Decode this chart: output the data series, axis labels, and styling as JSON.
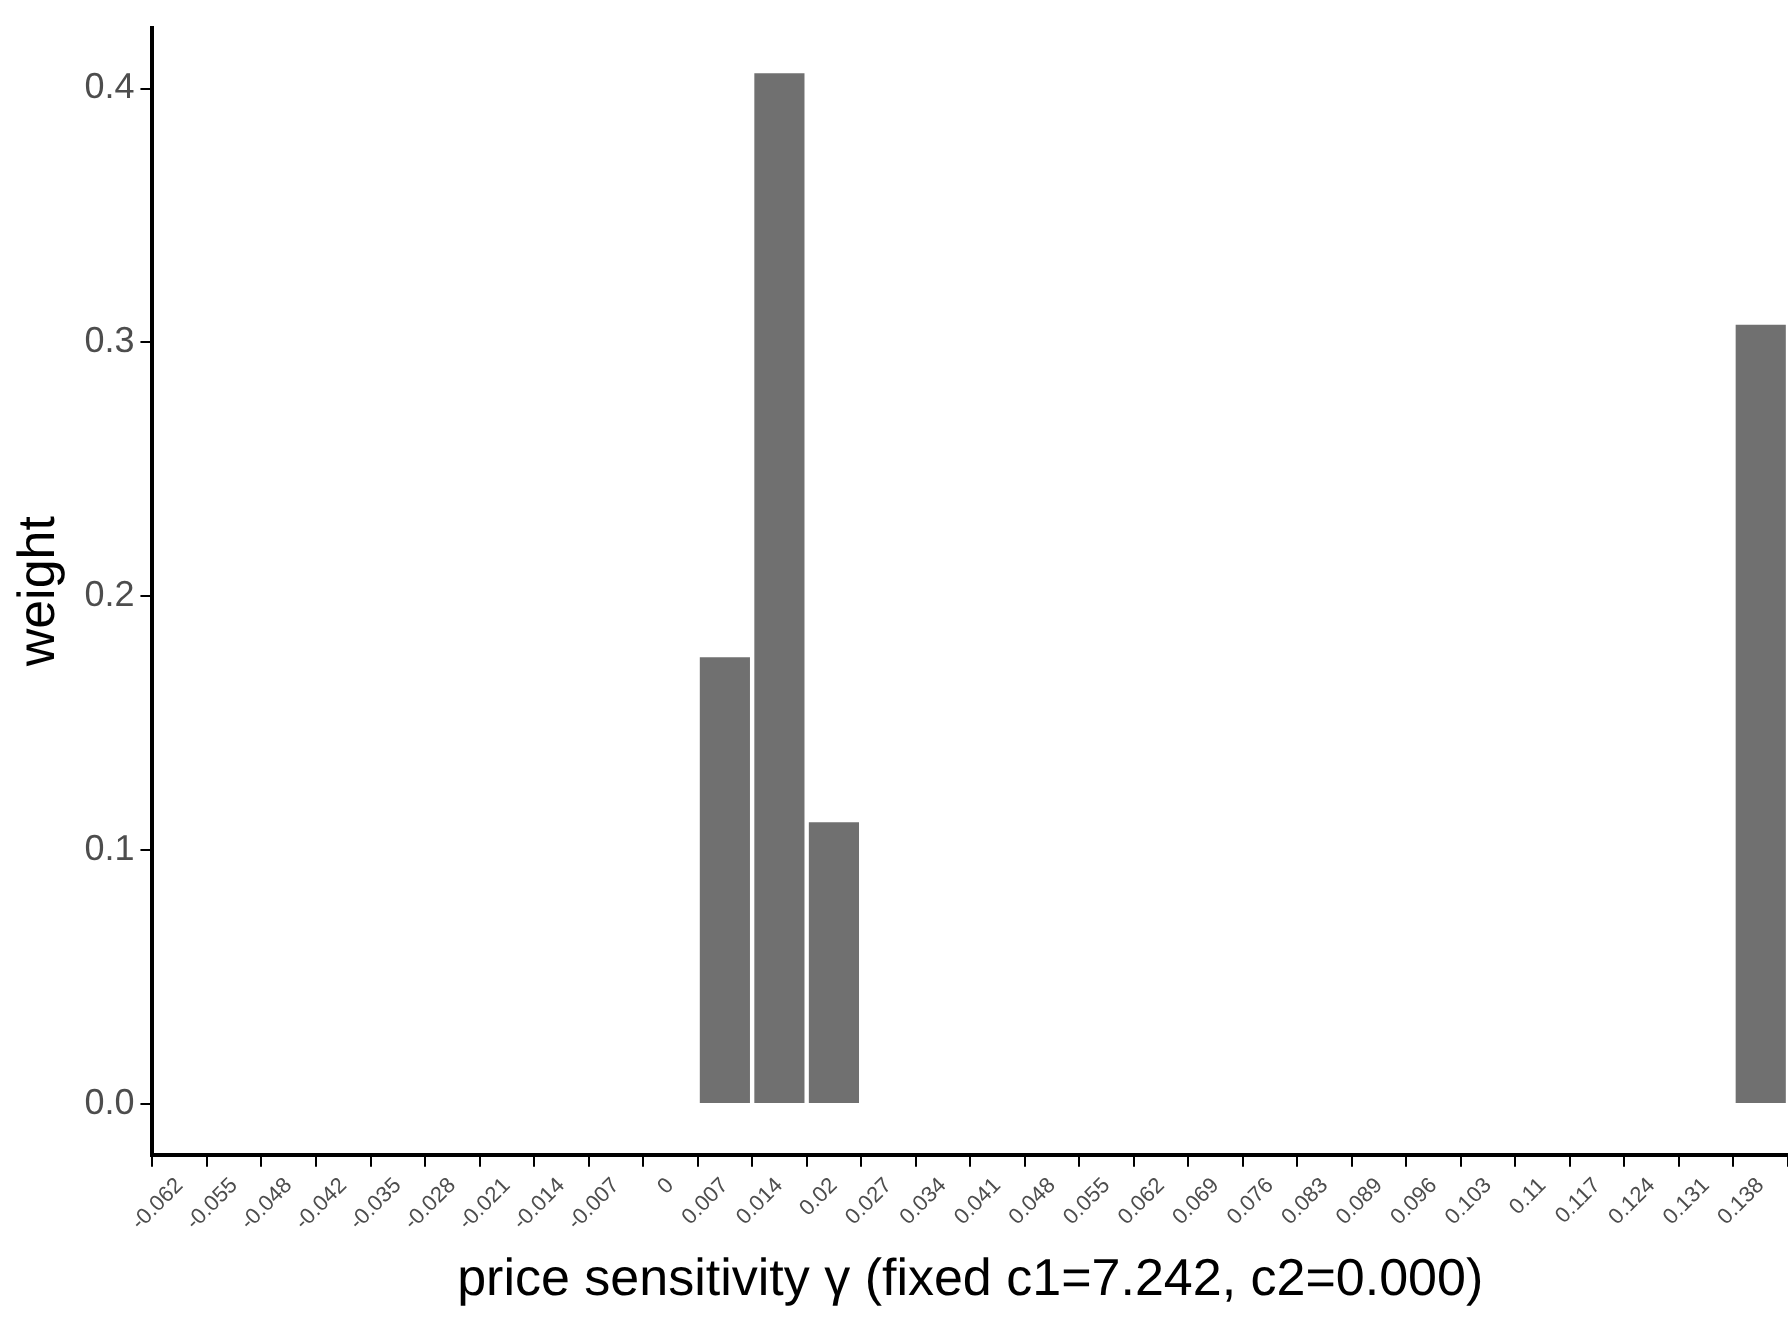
{
  "chart_data": {
    "type": "bar",
    "xlabel": "price sensitivity γ (fixed c1=7.242, c2=0.000)",
    "ylabel": "weight",
    "categories": [
      "-0.062",
      "-0.055",
      "-0.048",
      "-0.042",
      "-0.035",
      "-0.028",
      "-0.021",
      "-0.014",
      "-0.007",
      "0",
      "0.007",
      "0.014",
      "0.02",
      "0.027",
      "0.034",
      "0.041",
      "0.048",
      "0.055",
      "0.062",
      "0.069",
      "0.076",
      "0.083",
      "0.089",
      "0.096",
      "0.103",
      "0.11",
      "0.117",
      "0.124",
      "0.131",
      "0.138"
    ],
    "values": [
      0,
      0,
      0,
      0,
      0,
      0,
      0,
      0,
      0,
      0,
      0.176,
      0.406,
      0.111,
      0,
      0,
      0,
      0,
      0,
      0,
      0,
      0,
      0,
      0,
      0,
      0,
      0,
      0,
      0,
      0,
      0.307
    ],
    "color": "#707070",
    "ylim": [
      -0.02,
      0.424
    ],
    "yticks": [
      {
        "value": 0,
        "label": "0.0"
      },
      {
        "value": 0.1,
        "label": "0.1"
      },
      {
        "value": 0.2,
        "label": "0.2"
      },
      {
        "value": 0.3,
        "label": "0.3"
      },
      {
        "value": 0.4,
        "label": "0.4"
      }
    ],
    "grid": false,
    "legend": false
  }
}
